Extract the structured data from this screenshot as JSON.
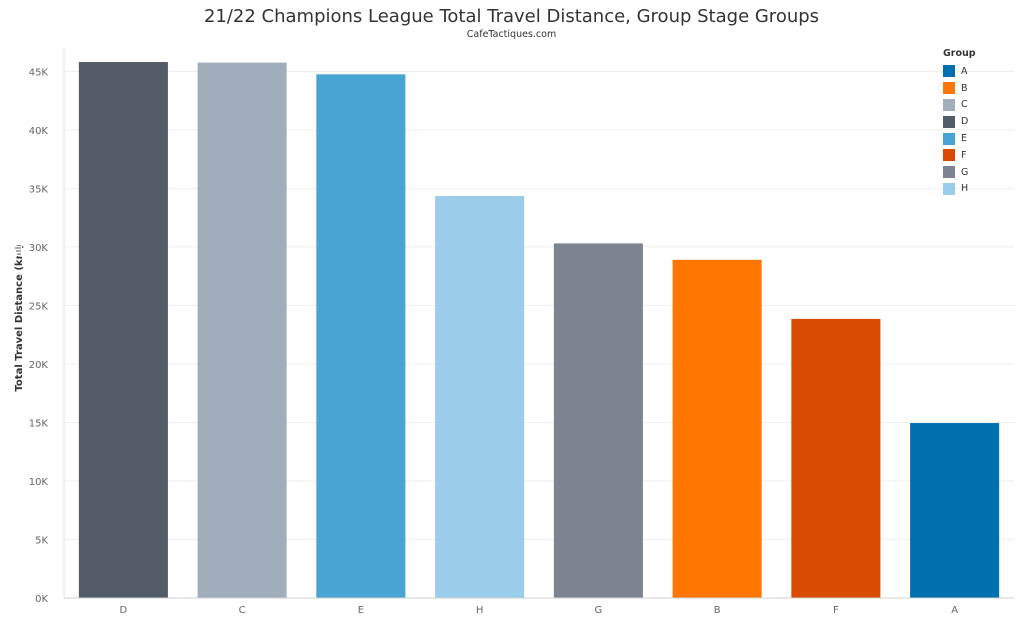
{
  "chart_data": {
    "type": "bar",
    "title": "21/22 Champions League Total Travel Distance, Group Stage Groups",
    "subtitle": "CafeTactiques.com",
    "ylabel": "Total Travel Distance (km)",
    "xlabel": "",
    "categories": [
      "D",
      "C",
      "E",
      "H",
      "G",
      "B",
      "F",
      "A"
    ],
    "values": [
      45800,
      45750,
      44750,
      34350,
      30300,
      28900,
      23850,
      14950
    ],
    "bar_colors": [
      "#525C67",
      "#A1ADBA",
      "#48A4D3",
      "#99CDEA",
      "#7B8490",
      "#FF7602",
      "#D84B00",
      "#0070AF"
    ],
    "ylim": [
      0,
      47000
    ],
    "yticks": [
      {
        "value": 0,
        "label": "0K"
      },
      {
        "value": 5000,
        "label": "5K"
      },
      {
        "value": 10000,
        "label": "10K"
      },
      {
        "value": 15000,
        "label": "15K"
      },
      {
        "value": 20000,
        "label": "20K"
      },
      {
        "value": 25000,
        "label": "25K"
      },
      {
        "value": 30000,
        "label": "30K"
      },
      {
        "value": 35000,
        "label": "35K"
      },
      {
        "value": 40000,
        "label": "40K"
      },
      {
        "value": 45000,
        "label": "45K"
      }
    ],
    "grid": true,
    "legend": {
      "title": "Group",
      "position": "top-right",
      "items": [
        {
          "label": "A",
          "color": "#0070AF"
        },
        {
          "label": "B",
          "color": "#FF7602"
        },
        {
          "label": "C",
          "color": "#A1ADBA"
        },
        {
          "label": "D",
          "color": "#525C67"
        },
        {
          "label": "E",
          "color": "#48A4D3"
        },
        {
          "label": "F",
          "color": "#D84B00"
        },
        {
          "label": "G",
          "color": "#7B8490"
        },
        {
          "label": "H",
          "color": "#99CDEA"
        }
      ]
    }
  }
}
